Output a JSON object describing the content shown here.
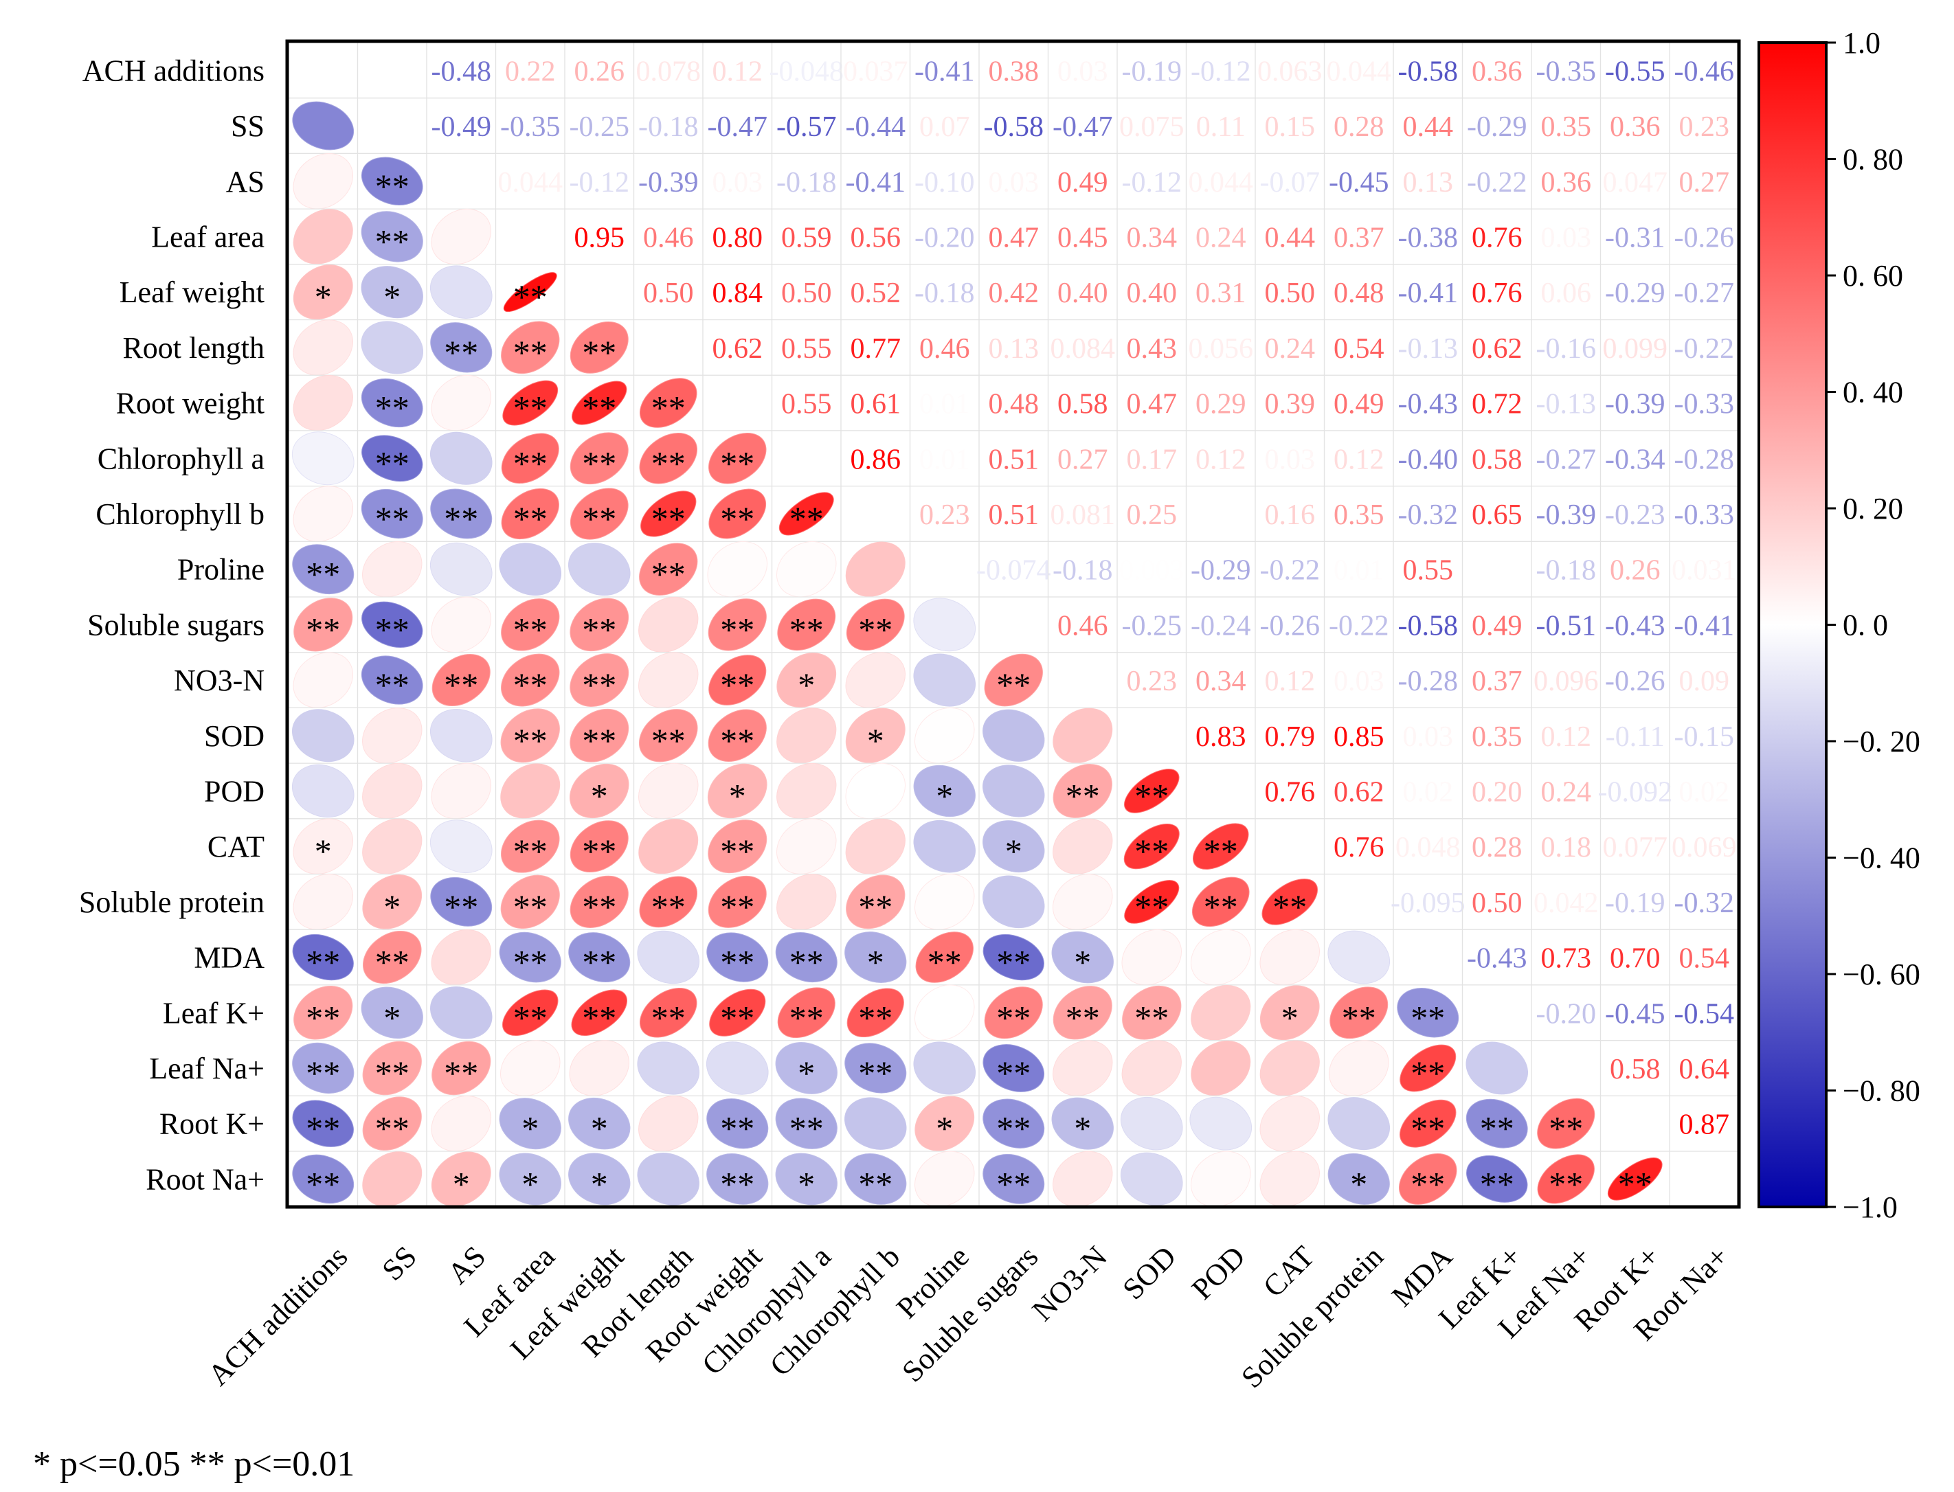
{
  "chart_data": {
    "type": "heatmap",
    "variables": [
      "ACH additions",
      "SS",
      "AS",
      "Leaf area",
      "Leaf weight",
      "Root length",
      "Root weight",
      "Chlorophyll a",
      "Chlorophyll b",
      "Proline",
      "Soluble sugars",
      "NO3-N",
      "SOD",
      "POD",
      "CAT",
      "Soluble protein",
      "MDA",
      "Leaf K+",
      "Leaf Na+",
      "Root K+",
      "Root Na+"
    ],
    "upper_labels": [
      [
        "",
        "-0.48",
        "0.22",
        "0.26",
        "0.078",
        "0.12",
        "-0.048",
        "0.037",
        "-0.41",
        "0.38",
        "0.03",
        "-0.19",
        "-0.12",
        "0.063",
        "0.044",
        "-0.58",
        "0.36",
        "-0.35",
        "-0.55",
        "-0.46"
      ],
      [
        "-0.49",
        "-0.35",
        "-0.25",
        "-0.18",
        "-0.47",
        "-0.57",
        "-0.44",
        "0.07",
        "-0.58",
        "-0.47",
        "0.075",
        "0.11",
        "0.15",
        "0.28",
        "0.44",
        "-0.29",
        "0.35",
        "0.36",
        "0.23"
      ],
      [
        "0.044",
        "-0.12",
        "-0.39",
        "0.03",
        "-0.18",
        "-0.41",
        "-0.10",
        "0.03",
        "0.49",
        "-0.12",
        "0.044",
        "-0.07",
        "-0.45",
        "0.13",
        "-0.22",
        "0.36",
        "0.047",
        "0.27"
      ],
      [
        "0.95",
        "0.46",
        "0.80",
        "0.59",
        "0.56",
        "-0.20",
        "0.47",
        "0.45",
        "0.34",
        "0.24",
        "0.44",
        "0.37",
        "-0.38",
        "0.76",
        "0.03",
        "-0.31",
        "-0.26"
      ],
      [
        "0.50",
        "0.84",
        "0.50",
        "0.52",
        "-0.18",
        "0.42",
        "0.40",
        "0.40",
        "0.31",
        "0.50",
        "0.48",
        "-0.41",
        "0.76",
        "0.06",
        "-0.29",
        "-0.27"
      ],
      [
        "0.62",
        "0.55",
        "0.77",
        "0.46",
        "0.13",
        "0.084",
        "0.43",
        "0.056",
        "0.24",
        "0.54",
        "-0.13",
        "0.62",
        "-0.16",
        "0.099",
        "-0.22"
      ],
      [
        "0.55",
        "0.61",
        "0.01",
        "0.48",
        "0.58",
        "0.47",
        "0.29",
        "0.39",
        "0.49",
        "-0.43",
        "0.72",
        "-0.13",
        "-0.39",
        "-0.33"
      ],
      [
        "0.86",
        "0.01",
        "0.51",
        "0.27",
        "0.17",
        "0.12",
        "0.03",
        "0.12",
        "-0.40",
        "0.58",
        "-0.27",
        "-0.34",
        "-0.28"
      ],
      [
        "0.23",
        "0.51",
        "0.081",
        "0.25",
        "",
        "0.16",
        "0.35",
        "-0.32",
        "0.65",
        "-0.39",
        "-0.23",
        "-0.33"
      ],
      [
        "-0.074",
        "-0.18",
        "0.003",
        "-0.29",
        "-0.22",
        "0.01",
        "0.55",
        "",
        "-0.18",
        "0.26",
        "0.031"
      ],
      [
        "0.46",
        "-0.25",
        "-0.24",
        "-0.26",
        "-0.22",
        "-0.58",
        "0.49",
        "-0.51",
        "-0.43",
        "-0.41"
      ],
      [
        "0.23",
        "0.34",
        "0.12",
        "0.03",
        "-0.28",
        "0.37",
        "0.096",
        "-0.26",
        "0.09"
      ],
      [
        "0.83",
        "0.79",
        "0.85",
        "0.03",
        "0.35",
        "0.12",
        "-0.11",
        "-0.15"
      ],
      [
        "0.76",
        "0.62",
        "0.02",
        "0.20",
        "0.24",
        "-0.092",
        "0.02"
      ],
      [
        "0.76",
        "0.048",
        "0.28",
        "0.18",
        "0.077",
        "0.069"
      ],
      [
        "-0.095",
        "0.50",
        "0.042",
        "-0.19",
        "-0.32"
      ],
      [
        "-0.43",
        "0.73",
        "0.70",
        "0.54"
      ],
      [
        "-0.20",
        "-0.45",
        "-0.54"
      ],
      [
        "0.58",
        "0.64"
      ],
      [
        "0.87"
      ],
      []
    ],
    "lower_values": [
      [],
      [
        "-0.48"
      ],
      [
        "0.04",
        "-0.49"
      ],
      [
        "0.22",
        "-0.35",
        "0.04"
      ],
      [
        "0.26",
        "-0.25",
        "-0.12",
        "0.95"
      ],
      [
        "0.078",
        "-0.18",
        "-0.39",
        "0.46",
        "0.50"
      ],
      [
        "0.12",
        "-0.47",
        "0.03",
        "0.80",
        "0.84",
        "0.62"
      ],
      [
        "-0.048",
        "-0.57",
        "-0.18",
        "0.59",
        "0.50",
        "0.55",
        "0.55"
      ],
      [
        "0.037",
        "-0.44",
        "-0.41",
        "0.56",
        "0.52",
        "0.77",
        "0.61",
        "0.86"
      ],
      [
        "-0.41",
        "0.07",
        "-0.10",
        "-0.20",
        "-0.18",
        "0.46",
        "0.01",
        "0.01",
        "0.23"
      ],
      [
        "0.38",
        "-0.58",
        "0.03",
        "0.47",
        "0.42",
        "0.13",
        "0.48",
        "0.51",
        "0.51",
        "-0.074"
      ],
      [
        "0.03",
        "-0.47",
        "0.49",
        "0.45",
        "0.40",
        "0.084",
        "0.58",
        "0.27",
        "0.081",
        "-0.18",
        "0.46"
      ],
      [
        "-0.19",
        "0.075",
        "-0.12",
        "0.34",
        "0.40",
        "0.43",
        "0.47",
        "0.17",
        "0.25",
        "0.003",
        "-0.25",
        "0.23"
      ],
      [
        "-0.12",
        "0.11",
        "0.044",
        "0.24",
        "0.31",
        "0.056",
        "0.29",
        "0.12",
        "0.0",
        "-0.29",
        "-0.24",
        "0.34",
        "0.83"
      ],
      [
        "0.063",
        "0.15",
        "-0.07",
        "0.44",
        "0.50",
        "0.24",
        "0.39",
        "0.03",
        "0.16",
        "-0.22",
        "-0.26",
        "0.12",
        "0.79",
        "0.76"
      ],
      [
        "0.044",
        "0.28",
        "-0.45",
        "0.37",
        "0.48",
        "0.54",
        "0.49",
        "0.12",
        "0.35",
        "0.01",
        "-0.22",
        "0.03",
        "0.85",
        "0.62",
        "0.76"
      ],
      [
        "-0.58",
        "0.44",
        "0.13",
        "-0.38",
        "-0.41",
        "-0.13",
        "-0.43",
        "-0.40",
        "-0.32",
        "0.55",
        "-0.58",
        "-0.28",
        "0.03",
        "0.02",
        "0.048",
        "-0.095"
      ],
      [
        "0.36",
        "-0.29",
        "-0.22",
        "0.76",
        "0.76",
        "0.62",
        "0.72",
        "0.58",
        "0.65",
        "0.0",
        "0.49",
        "0.37",
        "0.35",
        "0.20",
        "0.28",
        "0.50",
        "-0.43"
      ],
      [
        "-0.35",
        "0.35",
        "0.36",
        "0.03",
        "0.06",
        "-0.16",
        "-0.13",
        "-0.27",
        "-0.39",
        "-0.18",
        "-0.51",
        "0.096",
        "0.12",
        "0.24",
        "0.18",
        "0.042",
        "0.73",
        "-0.20"
      ],
      [
        "-0.55",
        "0.36",
        "0.047",
        "-0.31",
        "-0.29",
        "0.099",
        "-0.39",
        "-0.34",
        "-0.23",
        "0.26",
        "-0.43",
        "-0.26",
        "-0.11",
        "-0.092",
        "0.077",
        "-0.19",
        "0.70",
        "-0.45",
        "0.58"
      ],
      [
        "-0.46",
        "0.23",
        "0.27",
        "-0.26",
        "-0.27",
        "-0.22",
        "-0.33",
        "-0.28",
        "-0.33",
        "0.031",
        "-0.41",
        "0.09",
        "-0.15",
        "0.02",
        "0.069",
        "-0.32",
        "0.54",
        "-0.54",
        "0.64",
        "0.87"
      ]
    ],
    "lower_signif": [
      [],
      [
        ""
      ],
      [
        "",
        "**"
      ],
      [
        "",
        "**",
        ""
      ],
      [
        "*",
        "*",
        "",
        "**"
      ],
      [
        "",
        "",
        "**",
        "**",
        "**"
      ],
      [
        "",
        "**",
        "",
        "**",
        "**",
        "**"
      ],
      [
        "",
        "**",
        "",
        "**",
        "**",
        "**",
        "**"
      ],
      [
        "",
        "**",
        "**",
        "**",
        "**",
        "**",
        "**",
        "**"
      ],
      [
        "**",
        "",
        "",
        "",
        "",
        "**",
        "",
        "",
        ""
      ],
      [
        "**",
        "**",
        "",
        "**",
        "**",
        "",
        "**",
        "**",
        "**",
        ""
      ],
      [
        "",
        "**",
        "**",
        "**",
        "**",
        "",
        "**",
        "*",
        "",
        "",
        "**"
      ],
      [
        "",
        "",
        "",
        "**",
        "**",
        "**",
        "**",
        "",
        "*",
        "",
        "",
        ""
      ],
      [
        "",
        "",
        "",
        "",
        "*",
        "",
        "*",
        "",
        "",
        "*",
        "",
        "**",
        "**"
      ],
      [
        "*",
        "",
        "",
        "**",
        "**",
        "",
        "**",
        "",
        "",
        "",
        "*",
        "",
        "**",
        "**"
      ],
      [
        "",
        "*",
        "**",
        "**",
        "**",
        "**",
        "**",
        "",
        "**",
        "",
        "",
        "",
        "**",
        "**",
        "**"
      ],
      [
        "**",
        "**",
        "",
        "**",
        "**",
        "",
        "**",
        "**",
        "*",
        "**",
        "**",
        "*",
        "",
        "",
        "",
        ""
      ],
      [
        "**",
        "*",
        "",
        "**",
        "**",
        "**",
        "**",
        "**",
        "**",
        "",
        "**",
        "**",
        "**",
        "",
        "*",
        "**",
        "**"
      ],
      [
        "**",
        "**",
        "**",
        "",
        "",
        "",
        "",
        "*",
        "**",
        "",
        "**",
        "",
        "",
        "",
        "",
        "",
        "**",
        ""
      ],
      [
        "**",
        "**",
        "",
        "*",
        "*",
        "",
        "**",
        "**",
        "",
        "*",
        "**",
        "*",
        "",
        "",
        "",
        "",
        "**",
        "**",
        "**"
      ],
      [
        "**",
        "",
        "*",
        "*",
        "*",
        "",
        "**",
        "*",
        "**",
        "",
        "**",
        "",
        "",
        "",
        "",
        "*",
        "**",
        "**",
        "**",
        "**"
      ]
    ],
    "colorbar_ticks": [
      "1.0",
      "0. 80",
      "0. 60",
      "0. 40",
      "0. 20",
      "0. 0",
      "−0. 20",
      "−0. 40",
      "−0. 60",
      "−0. 80",
      "−1.0"
    ],
    "colorbar_min": -1.0,
    "colorbar_max": 1.0,
    "colors": {
      "negative": "#0000a8",
      "zero": "#ffffff",
      "positive": "#ff0000"
    },
    "legend_note": "* p<=0.05  ** p<=0.01"
  }
}
